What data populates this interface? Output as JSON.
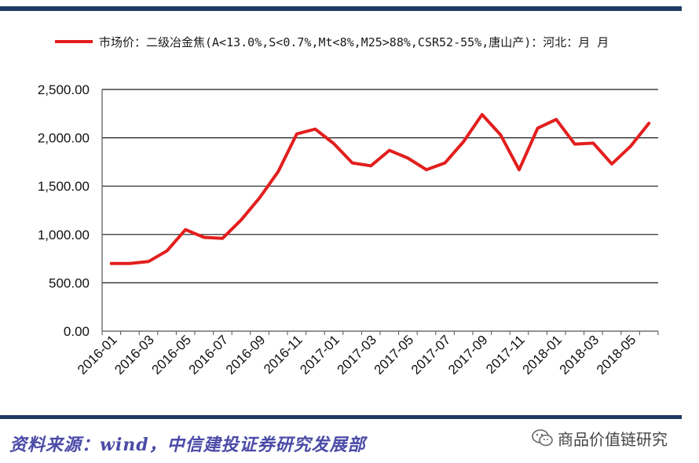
{
  "legend": {
    "label": "市场价：二级冶金焦(A<13.0%,S<0.7%,Mt<8%,M25>88%,CSR52-55%,唐山产)：河北：月 月"
  },
  "source_text": "资料来源：wind，中信建投证券研究发展部",
  "watermark": {
    "text": "商品价值链研究",
    "icon": "wechat-icon"
  },
  "colors": {
    "series": "#e31e1e",
    "rule": "#1f3b63",
    "source": "#4b4ba8"
  },
  "chart_data": {
    "type": "line",
    "ylim": [
      0,
      2500
    ],
    "y_ticks": [
      "0.00",
      "500.00",
      "1,000.00",
      "1,500.00",
      "2,000.00",
      "2,500.00"
    ],
    "x_ticks": [
      "2016-01",
      "2016-03",
      "2016-05",
      "2016-07",
      "2016-09",
      "2016-11",
      "2017-01",
      "2017-03",
      "2017-05",
      "2017-07",
      "2017-09",
      "2017-11",
      "2018-01",
      "2018-03",
      "2018-05"
    ],
    "grid": true,
    "series": [
      {
        "x": [
          "2016-01",
          "2016-02",
          "2016-03",
          "2016-04",
          "2016-05",
          "2016-06",
          "2016-07",
          "2016-08",
          "2016-09",
          "2016-10",
          "2016-11",
          "2016-12",
          "2017-01",
          "2017-02",
          "2017-03",
          "2017-04",
          "2017-05",
          "2017-06",
          "2017-07",
          "2017-08",
          "2017-09",
          "2017-10",
          "2017-11",
          "2017-12",
          "2018-01",
          "2018-02",
          "2018-03",
          "2018-04",
          "2018-05",
          "2018-06"
        ],
        "values": [
          700,
          700,
          720,
          830,
          1050,
          970,
          960,
          1150,
          1380,
          1650,
          2040,
          2090,
          1940,
          1740,
          1710,
          1870,
          1790,
          1670,
          1740,
          1960,
          2240,
          2030,
          1670,
          2100,
          2190,
          1935,
          1945,
          1730,
          1910,
          2150
        ]
      }
    ]
  }
}
